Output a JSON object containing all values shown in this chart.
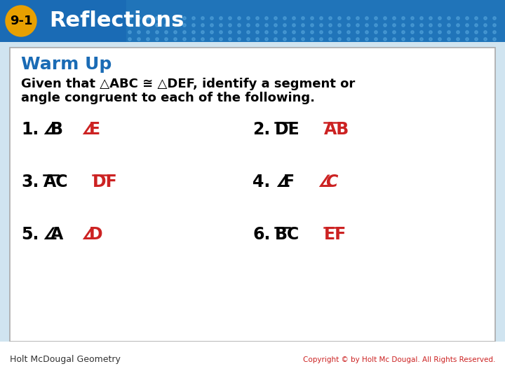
{
  "title": "Reflections",
  "lesson_num": "9-1",
  "warm_up": "Warm Up",
  "description_line1": "Given that △ABC ≅ △DEF, identify a segment or",
  "description_line2": "angle congruent to each of the following.",
  "header_bg_color": "#1a6bb5",
  "lesson_badge_color": "#e8a000",
  "lesson_badge_text_color": "#000000",
  "title_text_color": "#ffffff",
  "warm_up_color": "#1a6bb5",
  "body_bg_color": "#ffffff",
  "box_border_color": "#aaaaaa",
  "answer_color": "#cc2222",
  "question_color": "#000000",
  "footer_bg_color": "#ffffff",
  "footer_text_left": "Holt McDougal Geometry",
  "footer_text_right": "Copyright © by Holt Mc Dougal. All Rights Reserved.",
  "footer_text_color": "#333333",
  "footer_right_color": "#cc2222",
  "background_color": "#d0e4f0"
}
